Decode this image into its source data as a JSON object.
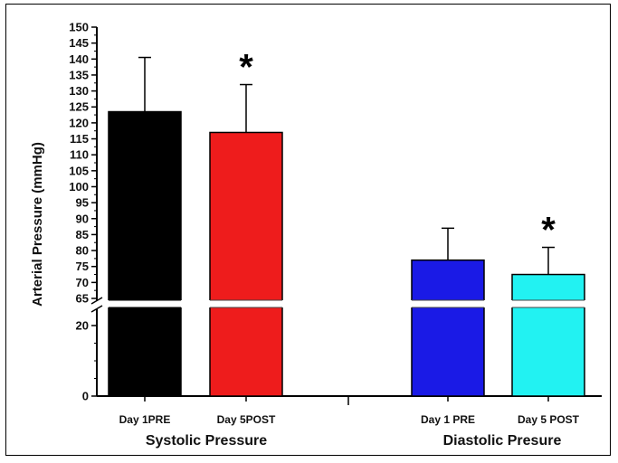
{
  "chart_data": {
    "type": "bar",
    "ylabel": "Arterial Pressure (mmHg)",
    "axis_break": [
      20,
      65
    ],
    "upper_ticks": [
      65,
      70,
      75,
      80,
      85,
      90,
      95,
      100,
      105,
      110,
      115,
      120,
      125,
      130,
      135,
      140,
      145,
      150
    ],
    "lower_ticks": [
      0,
      20
    ],
    "groups": [
      {
        "label": "Systolic Pressure",
        "bars": [
          {
            "category": "Day 1PRE",
            "value": 123.5,
            "error": 17,
            "color": "#000000",
            "significant": false
          },
          {
            "category": "Day 5POST",
            "value": 117,
            "error": 15,
            "color": "#ee1c1c",
            "significant": true
          }
        ]
      },
      {
        "label": "Diastolic Presure",
        "bars": [
          {
            "category": "Day 1 PRE",
            "value": 77,
            "error": 10,
            "color": "#1a1ae6",
            "significant": false
          },
          {
            "category": "Day 5 POST",
            "value": 72.5,
            "error": 8.5,
            "color": "#22f2f2",
            "significant": true
          }
        ]
      }
    ],
    "significance_marker": "*"
  }
}
